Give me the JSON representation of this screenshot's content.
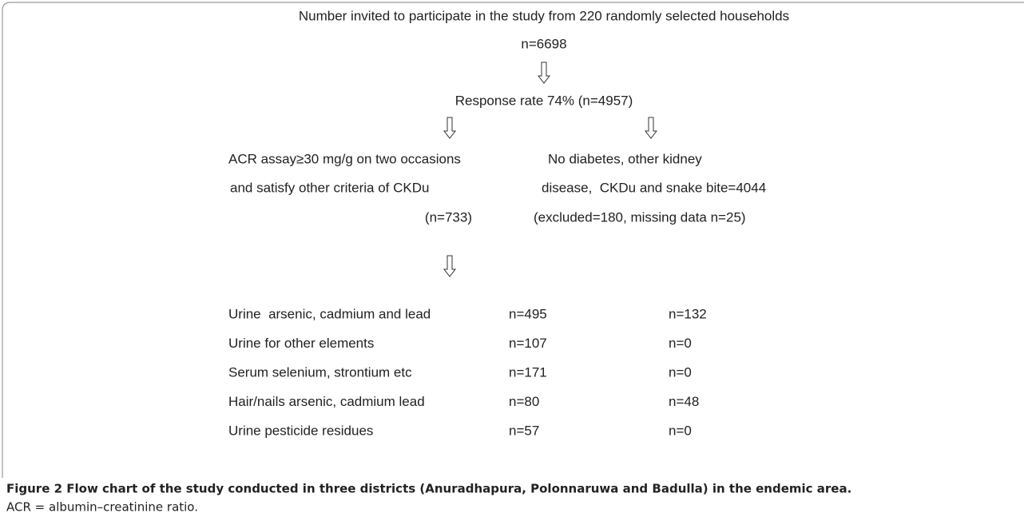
{
  "top": {
    "label": "Number invited to participate in the study from 220 randomly selected households",
    "count": "n=6698"
  },
  "response": "Response rate 74% (n=4957)",
  "branches": [
    {
      "lines": [
        "ACR assay≥30 mg/g on two occasions",
        "and satisfy other criteria of CKDu",
        "(n=733)"
      ]
    },
    {
      "lines": [
        "No diabetes, other kidney",
        "disease,  CKDu and snake bite=4044",
        "(excluded=180, missing data n=25)"
      ]
    }
  ],
  "table": {
    "rows": [
      [
        "Urine  arsenic, cadmium and lead",
        "n=495",
        "n=132"
      ],
      [
        "Urine for other elements",
        "n=107",
        "n=0"
      ],
      [
        "Serum selenium, strontium etc",
        "n=171",
        "n=0"
      ],
      [
        "Hair/nails arsenic, cadmium lead",
        "n=80",
        "n=48"
      ],
      [
        "Urine pesticide residues",
        "n=57",
        "n=0"
      ]
    ]
  },
  "caption": {
    "title": "Figure 2 Flow chart of the study conducted in three districts (Anuradhapura, Polonnaruwa and Badulla) in the endemic area.",
    "note": "ACR = albumin–creatinine ratio."
  }
}
